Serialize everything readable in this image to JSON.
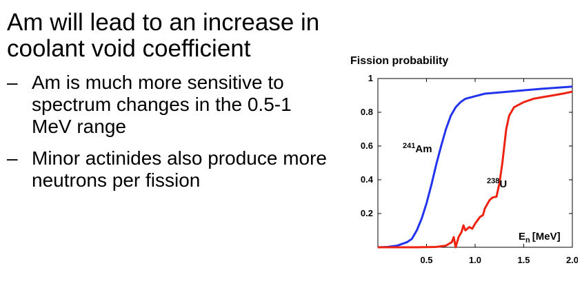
{
  "slide": {
    "heading": "Am will lead to an increase in coolant void coefficient",
    "bullets": [
      {
        "dash": "–",
        "text": "Am is much more sensitive to spectrum changes in the 0.5-1 MeV range"
      },
      {
        "dash": "–",
        "text": "Minor actinides also produce more neutrons per fission"
      }
    ]
  },
  "chart_data": {
    "type": "line",
    "title": "Fission probability",
    "x_axis_label": "E",
    "x_axis_label_sub": "n",
    "x_axis_label_unit": "[MeV]",
    "xlim": [
      0,
      2.0
    ],
    "ylim": [
      0,
      1
    ],
    "x_ticks": [
      {
        "v": 0.5,
        "label": "0.5"
      },
      {
        "v": 1.0,
        "label": "1.0"
      },
      {
        "v": 1.5,
        "label": "1.5"
      },
      {
        "v": 2.0,
        "label": "2.0"
      }
    ],
    "y_ticks": [
      {
        "v": 0.2,
        "label": "0.2"
      },
      {
        "v": 0.4,
        "label": "0.4"
      },
      {
        "v": 0.6,
        "label": "0.6"
      },
      {
        "v": 0.8,
        "label": "0.8"
      },
      {
        "v": 1,
        "label": "1"
      }
    ],
    "grid": false,
    "series": [
      {
        "mass": "241",
        "element": "Am",
        "color": "#2233ee",
        "points": [
          [
            0,
            0
          ],
          [
            0.1,
            0.002
          ],
          [
            0.2,
            0.01
          ],
          [
            0.3,
            0.03
          ],
          [
            0.35,
            0.05
          ],
          [
            0.4,
            0.1
          ],
          [
            0.45,
            0.17
          ],
          [
            0.5,
            0.26
          ],
          [
            0.55,
            0.37
          ],
          [
            0.6,
            0.49
          ],
          [
            0.65,
            0.6
          ],
          [
            0.7,
            0.7
          ],
          [
            0.75,
            0.78
          ],
          [
            0.8,
            0.83
          ],
          [
            0.85,
            0.86
          ],
          [
            0.9,
            0.88
          ],
          [
            1.0,
            0.895
          ],
          [
            1.1,
            0.91
          ],
          [
            1.3,
            0.92
          ],
          [
            1.5,
            0.93
          ],
          [
            1.7,
            0.94
          ],
          [
            1.9,
            0.948
          ],
          [
            2.0,
            0.952
          ]
        ]
      },
      {
        "mass": "238",
        "element": "U",
        "color": "#ee2211",
        "points": [
          [
            0,
            0
          ],
          [
            0.4,
            0
          ],
          [
            0.6,
            0.002
          ],
          [
            0.7,
            0.01
          ],
          [
            0.76,
            0.03
          ],
          [
            0.78,
            0.06
          ],
          [
            0.8,
            0.0
          ],
          [
            0.83,
            0.06
          ],
          [
            0.86,
            0.09
          ],
          [
            0.88,
            0.13
          ],
          [
            0.9,
            0.1
          ],
          [
            0.94,
            0.12
          ],
          [
            0.97,
            0.11
          ],
          [
            1.0,
            0.14
          ],
          [
            1.05,
            0.18
          ],
          [
            1.08,
            0.19
          ],
          [
            1.1,
            0.23
          ],
          [
            1.13,
            0.26
          ],
          [
            1.15,
            0.28
          ],
          [
            1.18,
            0.295
          ],
          [
            1.22,
            0.3
          ],
          [
            1.25,
            0.38
          ],
          [
            1.28,
            0.5
          ],
          [
            1.3,
            0.6
          ],
          [
            1.32,
            0.7
          ],
          [
            1.35,
            0.78
          ],
          [
            1.4,
            0.83
          ],
          [
            1.5,
            0.86
          ],
          [
            1.6,
            0.88
          ],
          [
            1.7,
            0.89
          ],
          [
            1.8,
            0.9
          ],
          [
            1.9,
            0.91
          ],
          [
            2.0,
            0.922
          ]
        ]
      }
    ]
  }
}
